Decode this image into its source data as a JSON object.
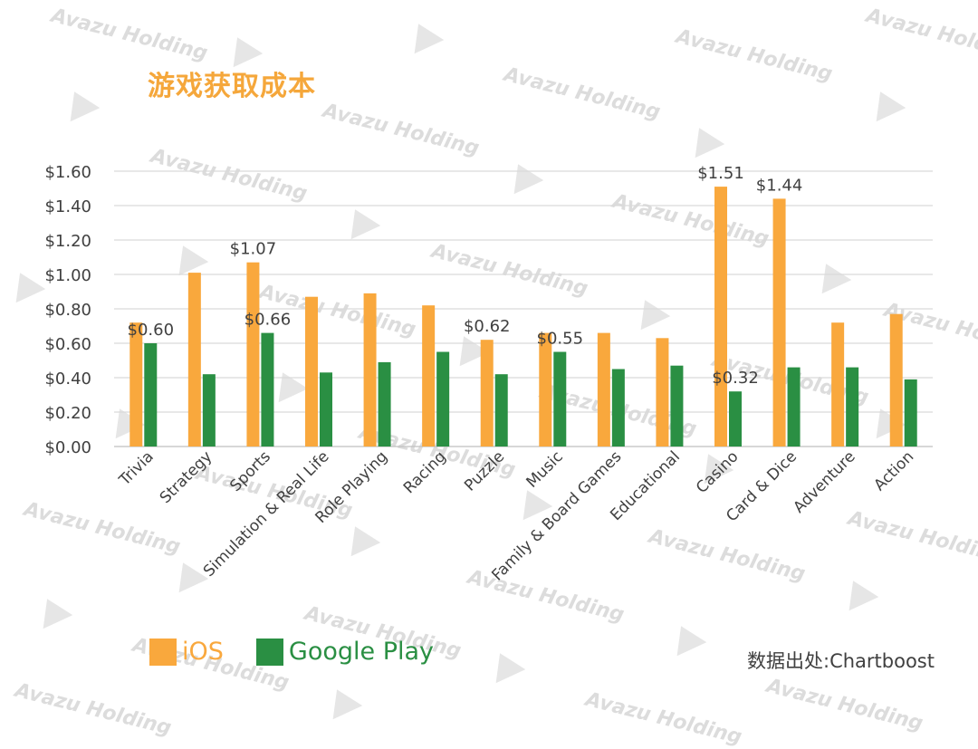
{
  "title": "游戏获取成本",
  "source": "数据出处:Chartboost",
  "watermark": "Avazu Holding",
  "colors": {
    "ios": "#f9a83d",
    "google_play": "#2a8f43",
    "title": "#f5a73b",
    "grid": "#d9d9d9"
  },
  "chart_data": {
    "type": "bar",
    "categories": [
      "Trivia",
      "Strategy",
      "Sports",
      "Simulation & Real Life",
      "Role Playing",
      "Racing",
      "Puzzle",
      "Music",
      "Family & Board Games",
      "Educational",
      "Casino",
      "Card & Dice",
      "Adventure",
      "Action"
    ],
    "series": [
      {
        "name": "iOS",
        "color": "#f9a83d",
        "values": [
          0.72,
          1.01,
          1.07,
          0.87,
          0.89,
          0.82,
          0.62,
          0.66,
          0.66,
          0.63,
          1.51,
          1.44,
          0.72,
          0.77
        ]
      },
      {
        "name": "Google Play",
        "color": "#2a8f43",
        "values": [
          0.6,
          0.42,
          0.66,
          0.43,
          0.49,
          0.55,
          0.42,
          0.55,
          0.45,
          0.47,
          0.32,
          0.46,
          0.46,
          0.39
        ]
      }
    ],
    "data_labels": [
      {
        "category": "Trivia",
        "series": "Google Play",
        "text": "$0.60"
      },
      {
        "category": "Sports",
        "series": "iOS",
        "text": "$1.07"
      },
      {
        "category": "Sports",
        "series": "Google Play",
        "text": "$0.66"
      },
      {
        "category": "Puzzle",
        "series": "iOS",
        "text": "$0.62"
      },
      {
        "category": "Music",
        "series": "Google Play",
        "text": "$0.55"
      },
      {
        "category": "Casino",
        "series": "iOS",
        "text": "$1.51"
      },
      {
        "category": "Casino",
        "series": "Google Play",
        "text": "$0.32"
      },
      {
        "category": "Card & Dice",
        "series": "iOS",
        "text": "$1.44"
      }
    ],
    "y_ticks": [
      "$0.00",
      "$0.20",
      "$0.40",
      "$0.60",
      "$0.80",
      "$1.00",
      "$1.20",
      "$1.40",
      "$1.60"
    ],
    "ylim": [
      0,
      1.6
    ],
    "grid": true,
    "legend": "bottom-left"
  }
}
